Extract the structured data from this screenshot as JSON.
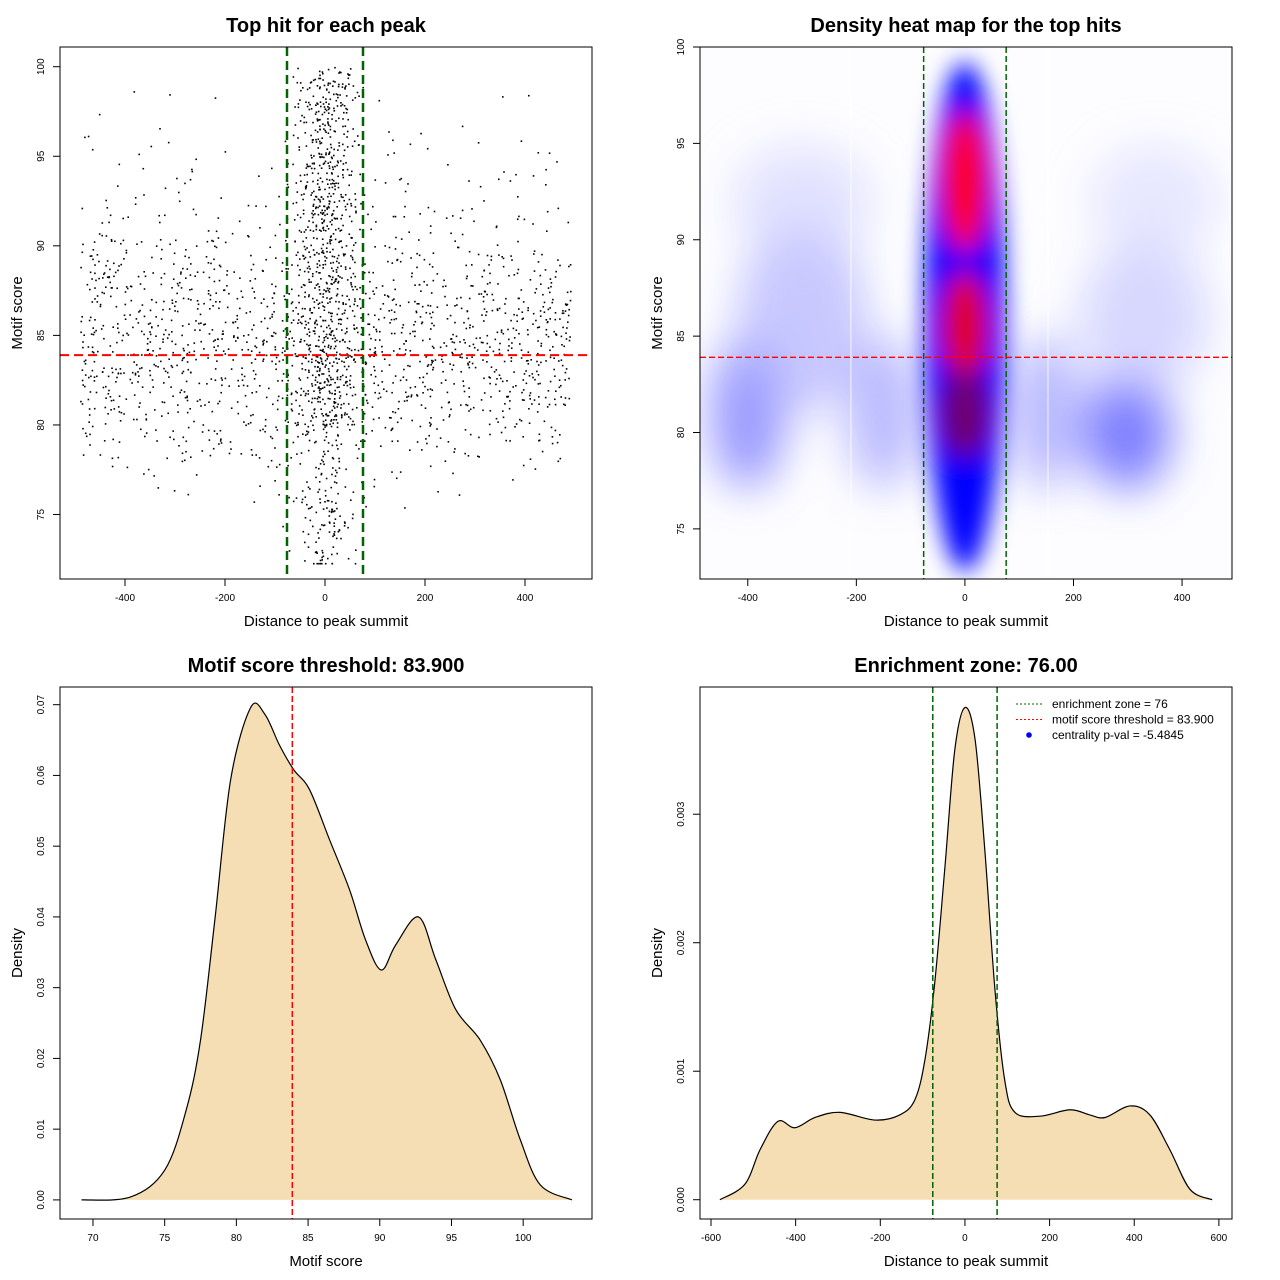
{
  "chart_data": [
    {
      "type": "scatter",
      "title": "Top hit for each peak",
      "xlabel": "Distance to peak summit",
      "ylabel": "Motif score",
      "xlim": [
        -530,
        534
      ],
      "ylim": [
        71.4,
        101.1
      ],
      "xticks": [
        -400,
        -200,
        0,
        200,
        400
      ],
      "yticks": [
        75,
        80,
        85,
        90,
        95,
        100
      ],
      "point_color": "#000000",
      "point_distribution": "x spread across -490..490, y 72-100; dense column near x=0 between the enrichment lines",
      "vlines": {
        "values": [
          -76,
          76
        ],
        "color": "#006400",
        "style": "dashed"
      },
      "hline": {
        "value": 83.9,
        "color": "#ff0000",
        "style": "dashed"
      },
      "grid": false
    },
    {
      "type": "heatmap",
      "title": "Density heat map for the top hits",
      "xlabel": "Distance to peak summit",
      "ylabel": "Motif score",
      "xlim": [
        -488,
        492
      ],
      "ylim": [
        72.4,
        100
      ],
      "xticks": [
        -400,
        -200,
        0,
        200,
        400
      ],
      "yticks": [
        75,
        80,
        85,
        90,
        95,
        100
      ],
      "colors": [
        "#ffffff",
        "#0000ff",
        "#ff0000"
      ],
      "hot_spots": [
        {
          "x": 0,
          "y": 93
        },
        {
          "x": 0,
          "y": 85.5
        }
      ],
      "vlines": {
        "values": [
          -76,
          76
        ],
        "color": "#006400",
        "style": "dashed"
      },
      "hline": {
        "value": 83.9,
        "color": "#ff0000",
        "style": "dashed"
      }
    },
    {
      "type": "area",
      "title": "Motif score threshold: 83.900",
      "xlabel": "Motif score",
      "ylabel": "Density",
      "xlim": [
        67.7,
        104.8
      ],
      "ylim": [
        -0.0027,
        0.0725
      ],
      "xticks": [
        70,
        75,
        80,
        85,
        90,
        95,
        100
      ],
      "yticks": [
        "0.00",
        "0.01",
        "0.02",
        "0.03",
        "0.04",
        "0.05",
        "0.06",
        "0.07"
      ],
      "fill": "#f5deb3",
      "x": [
        69.2,
        72.6,
        75,
        76.5,
        77.5,
        78.5,
        79.6,
        81,
        82,
        83,
        84,
        85.1,
        86.5,
        87.9,
        89,
        90.1,
        91.1,
        92.7,
        93.9,
        95.3,
        97,
        98.4,
        99.8,
        101.2,
        103.4
      ],
      "y": [
        0,
        0.0004,
        0.0042,
        0.0127,
        0.0226,
        0.0396,
        0.0594,
        0.0696,
        0.0686,
        0.0643,
        0.0608,
        0.058,
        0.0509,
        0.0438,
        0.0368,
        0.0325,
        0.036,
        0.04,
        0.034,
        0.0269,
        0.0226,
        0.017,
        0.0085,
        0.0021,
        0
      ],
      "vline": {
        "value": 83.9,
        "color": "#ff0000",
        "style": "dashed"
      }
    },
    {
      "type": "area",
      "title": "Enrichment zone: 76.00",
      "xlabel": "Distance to peak summit",
      "ylabel": "Density",
      "xlim": [
        -626,
        631
      ],
      "ylim": [
        -0.00015,
        0.00399
      ],
      "xticks": [
        -600,
        -400,
        -200,
        0,
        200,
        400,
        600
      ],
      "yticks": [
        "0.000",
        "0.001",
        "0.002",
        "0.003"
      ],
      "fill": "#f5deb3",
      "x": [
        -579,
        -520,
        -484,
        -442,
        -402,
        -354,
        -295,
        -213,
        -154,
        -118,
        -94,
        -71,
        -47,
        -24,
        0,
        24,
        47,
        71,
        94,
        118,
        177,
        248,
        295,
        331,
        390,
        437,
        484,
        532,
        584
      ],
      "y": [
        0,
        0.00012,
        0.00039,
        0.00061,
        0.00056,
        0.00064,
        0.00068,
        0.00062,
        0.00066,
        0.00078,
        0.0011,
        0.0017,
        0.0026,
        0.0035,
        0.00383,
        0.00358,
        0.00272,
        0.00163,
        0.00093,
        0.00068,
        0.00065,
        0.0007,
        0.00066,
        0.00064,
        0.00073,
        0.00066,
        0.00039,
        8e-05,
        0
      ],
      "vlines": {
        "values": [
          -76,
          76
        ],
        "color": "#006400",
        "style": "dashed"
      },
      "legend": {
        "placement": "top-right",
        "entries": [
          {
            "label": "enrichment zone = 76",
            "color": "#006400",
            "marker": "dotted-line"
          },
          {
            "label": "motif score threshold = 83.900",
            "color": "#ff0000",
            "marker": "dotted-line"
          },
          {
            "label": "centrality p-val = -5.4845",
            "color": "#0000ff",
            "marker": "dot"
          }
        ]
      }
    }
  ]
}
